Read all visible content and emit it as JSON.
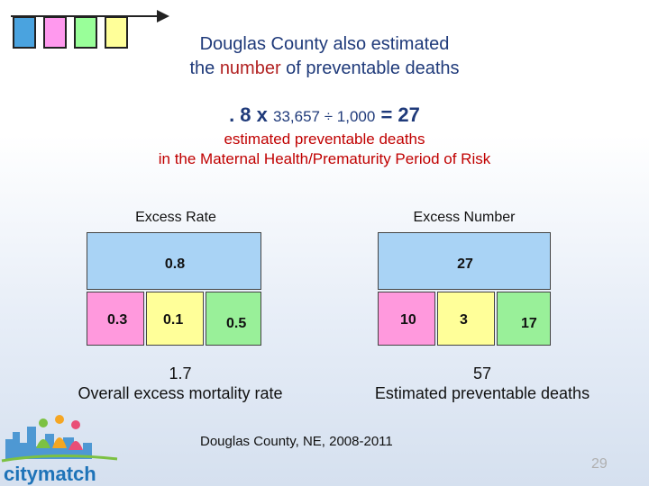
{
  "title": {
    "line1": "Douglas County also estimated",
    "line2_pre": "the ",
    "line2_hl": "number",
    "line2_post": " of preventable deaths"
  },
  "equation": {
    "rate": ". 8",
    "op1": " x ",
    "births": "33,657",
    "op2": " ÷ ",
    "per": "1,000",
    "op3": " = ",
    "result": "27"
  },
  "subtitle": {
    "line1": "estimated preventable deaths",
    "line2": "in the Maternal Health/Prematurity Period of Risk"
  },
  "left": {
    "heading": "Excess Rate",
    "top_value": "0.8",
    "sub_values": [
      "0.3",
      "0.1",
      "0.5"
    ],
    "summary_value": "1.7",
    "summary_label": "Overall excess mortality rate"
  },
  "right": {
    "heading": "Excess Number",
    "top_value": "27",
    "sub_values": [
      "10",
      "3",
      "17"
    ],
    "summary_value": "57",
    "summary_label": "Estimated preventable deaths"
  },
  "footer": {
    "source": "Douglas County, NE, 2008-2011",
    "page_number": "29"
  },
  "logo": {
    "text": "citymatch"
  },
  "colors": {
    "blue": "#a9d3f5",
    "pink": "#ff99dd",
    "green": "#99f099",
    "yellow": "#ffff99",
    "title": "#1f3a7a",
    "highlight": "#b22222",
    "red_text": "#c00000"
  }
}
